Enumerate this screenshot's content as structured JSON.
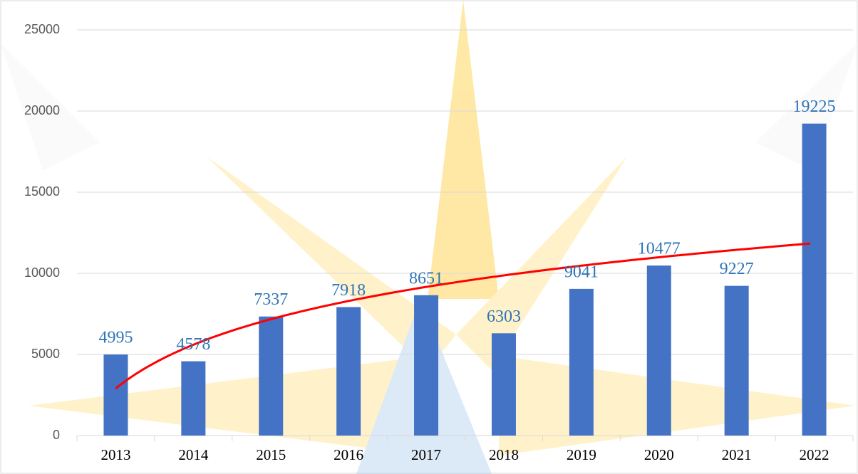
{
  "chart_data": {
    "type": "bar",
    "categories": [
      "2013",
      "2014",
      "2015",
      "2016",
      "2017",
      "2018",
      "2019",
      "2020",
      "2021",
      "2022"
    ],
    "values": [
      4995,
      4578,
      7337,
      7918,
      8651,
      6303,
      9041,
      10477,
      9227,
      19225
    ],
    "color": "#4472c4",
    "label_color": "#2e75b6",
    "ylim": [
      0,
      25000
    ],
    "yticks": [
      0,
      5000,
      10000,
      15000,
      20000,
      25000
    ],
    "grid": true,
    "trendline": {
      "type": "logarithmic",
      "color": "#ff0000"
    }
  }
}
